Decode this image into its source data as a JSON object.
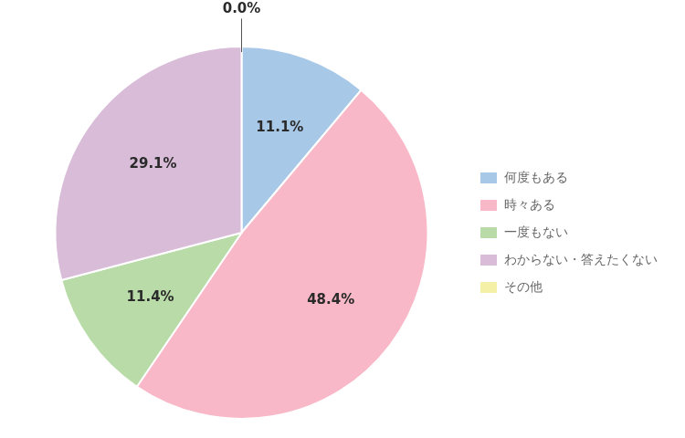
{
  "chart_data": {
    "type": "pie",
    "categories": [
      "何度もある",
      "時々ある",
      "一度もない",
      "わからない・答えたくない",
      "その他"
    ],
    "values": [
      11.1,
      48.4,
      11.4,
      29.1,
      0.0
    ],
    "value_labels": [
      "11.1%",
      "48.4%",
      "11.4%",
      "29.1%",
      "0.0%"
    ],
    "colors": [
      "#a8c8e8",
      "#f9b8c8",
      "#b8dba8",
      "#d8bcd8",
      "#f5f0a8"
    ],
    "data_labels": true,
    "legend": "right"
  }
}
